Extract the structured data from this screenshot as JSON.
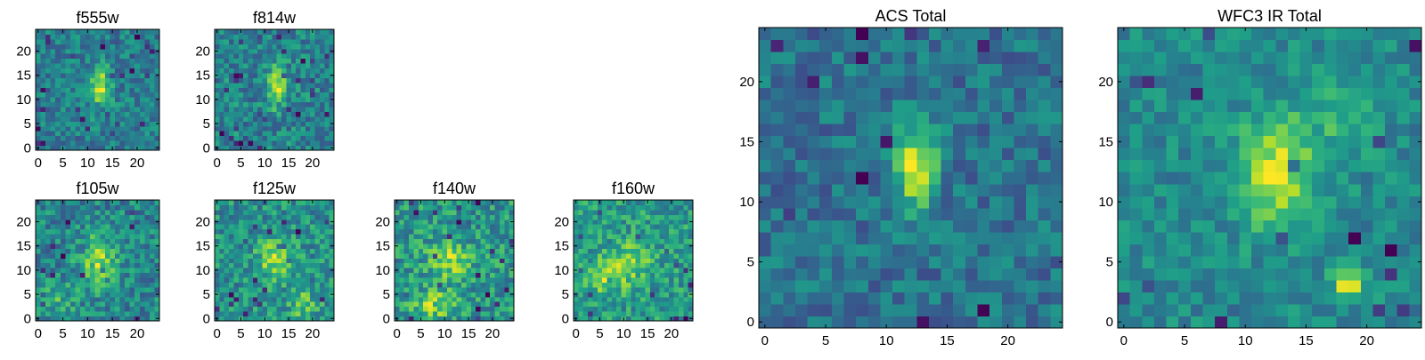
{
  "figure": {
    "colormap": "viridis",
    "colors": {
      "low": "#440154",
      "mid": "#21908d",
      "high": "#fde725",
      "frame": "#000000"
    }
  },
  "chart_data": [
    {
      "type": "heatmap",
      "title": "f555w",
      "size": 25,
      "xticks": [
        "0",
        "5",
        "10",
        "15",
        "20"
      ],
      "yticks": [
        "0",
        "5",
        "10",
        "15",
        "20"
      ],
      "xlim": [
        -0.5,
        24.5
      ],
      "ylim": [
        -0.5,
        24.5
      ],
      "seed": 11,
      "noise": 0.34,
      "lowcut": 0.055,
      "blobs": [
        {
          "x": 12.6,
          "y": 12.5,
          "sx": 1.4,
          "sy": 3.2,
          "a": 0.9
        }
      ]
    },
    {
      "type": "heatmap",
      "title": "f814w",
      "size": 25,
      "xticks": [
        "0",
        "5",
        "10",
        "15",
        "20"
      ],
      "yticks": [
        "0",
        "5",
        "10",
        "15",
        "20"
      ],
      "xlim": [
        -0.5,
        24.5
      ],
      "ylim": [
        -0.5,
        24.5
      ],
      "seed": 23,
      "noise": 0.34,
      "lowcut": 0.055,
      "blobs": [
        {
          "x": 12.5,
          "y": 12.8,
          "sx": 1.3,
          "sy": 3.0,
          "a": 0.8
        }
      ]
    },
    {
      "type": "heatmap",
      "title": "f105w",
      "size": 25,
      "xticks": [
        "0",
        "5",
        "10",
        "15",
        "20"
      ],
      "yticks": [
        "0",
        "5",
        "10",
        "15",
        "20"
      ],
      "xlim": [
        -0.5,
        24.5
      ],
      "ylim": [
        -0.5,
        24.5
      ],
      "seed": 37,
      "noise": 0.3,
      "lowcut": 0.035,
      "blobs": [
        {
          "x": 12,
          "y": 12,
          "sx": 2.5,
          "sy": 3.5,
          "a": 0.55
        },
        {
          "x": 4,
          "y": 4,
          "sx": 2.5,
          "sy": 2.5,
          "a": 0.25
        }
      ]
    },
    {
      "type": "heatmap",
      "title": "f125w",
      "size": 25,
      "xticks": [
        "0",
        "5",
        "10",
        "15",
        "20"
      ],
      "yticks": [
        "0",
        "5",
        "10",
        "15",
        "20"
      ],
      "xlim": [
        -0.5,
        24.5
      ],
      "ylim": [
        -0.5,
        24.5
      ],
      "seed": 51,
      "noise": 0.3,
      "lowcut": 0.035,
      "blobs": [
        {
          "x": 12,
          "y": 12,
          "sx": 2.5,
          "sy": 3.0,
          "a": 0.45
        },
        {
          "x": 18,
          "y": 3,
          "sx": 2,
          "sy": 2,
          "a": 0.35
        }
      ]
    },
    {
      "type": "heatmap",
      "title": "f140w",
      "size": 25,
      "xticks": [
        "0",
        "5",
        "10",
        "15",
        "20"
      ],
      "yticks": [
        "0",
        "5",
        "10",
        "15",
        "20"
      ],
      "xlim": [
        -0.5,
        24.5
      ],
      "ylim": [
        -0.5,
        24.5
      ],
      "seed": 67,
      "noise": 0.3,
      "lowcut": 0.035,
      "blobs": [
        {
          "x": 11,
          "y": 12,
          "sx": 3,
          "sy": 3,
          "a": 0.4
        },
        {
          "x": 8,
          "y": 3,
          "sx": 3,
          "sy": 2,
          "a": 0.4
        }
      ]
    },
    {
      "type": "heatmap",
      "title": "f160w",
      "size": 25,
      "xticks": [
        "0",
        "5",
        "10",
        "15",
        "20"
      ],
      "yticks": [
        "0",
        "5",
        "10",
        "15",
        "20"
      ],
      "xlim": [
        -0.5,
        24.5
      ],
      "ylim": [
        -0.5,
        24.5
      ],
      "seed": 83,
      "noise": 0.3,
      "lowcut": 0.035,
      "blobs": [
        {
          "x": 6,
          "y": 9,
          "sx": 3,
          "sy": 2.5,
          "a": 0.45
        },
        {
          "x": 12,
          "y": 12,
          "sx": 2.5,
          "sy": 3,
          "a": 0.35
        }
      ]
    },
    {
      "type": "heatmap",
      "title": "ACS Total",
      "size": 25,
      "xticks": [
        "0",
        "5",
        "10",
        "15",
        "20"
      ],
      "yticks": [
        "0",
        "5",
        "10",
        "15",
        "20"
      ],
      "xlim": [
        -0.5,
        24.5
      ],
      "ylim": [
        -0.5,
        24.5
      ],
      "seed": 97,
      "noise": 0.26,
      "lowcut": 0.03,
      "blobs": [
        {
          "x": 12.5,
          "y": 13,
          "sx": 1.2,
          "sy": 2.6,
          "a": 0.85
        }
      ]
    },
    {
      "type": "heatmap",
      "title": "WFC3 IR Total",
      "size": 25,
      "xticks": [
        "0",
        "5",
        "10",
        "15",
        "20"
      ],
      "yticks": [
        "0",
        "5",
        "10",
        "15",
        "20"
      ],
      "xlim": [
        -0.5,
        24.5
      ],
      "ylim": [
        -0.5,
        24.5
      ],
      "seed": 113,
      "noise": 0.2,
      "lowcut": 0.03,
      "blobs": [
        {
          "x": 12.5,
          "y": 12.5,
          "sx": 2.3,
          "sy": 3.2,
          "a": 0.65
        },
        {
          "x": 18.5,
          "y": 3.5,
          "sx": 0.9,
          "sy": 0.9,
          "a": 0.75
        },
        {
          "x": 18,
          "y": 17.5,
          "sx": 2,
          "sy": 2.5,
          "a": 0.25
        }
      ]
    }
  ]
}
